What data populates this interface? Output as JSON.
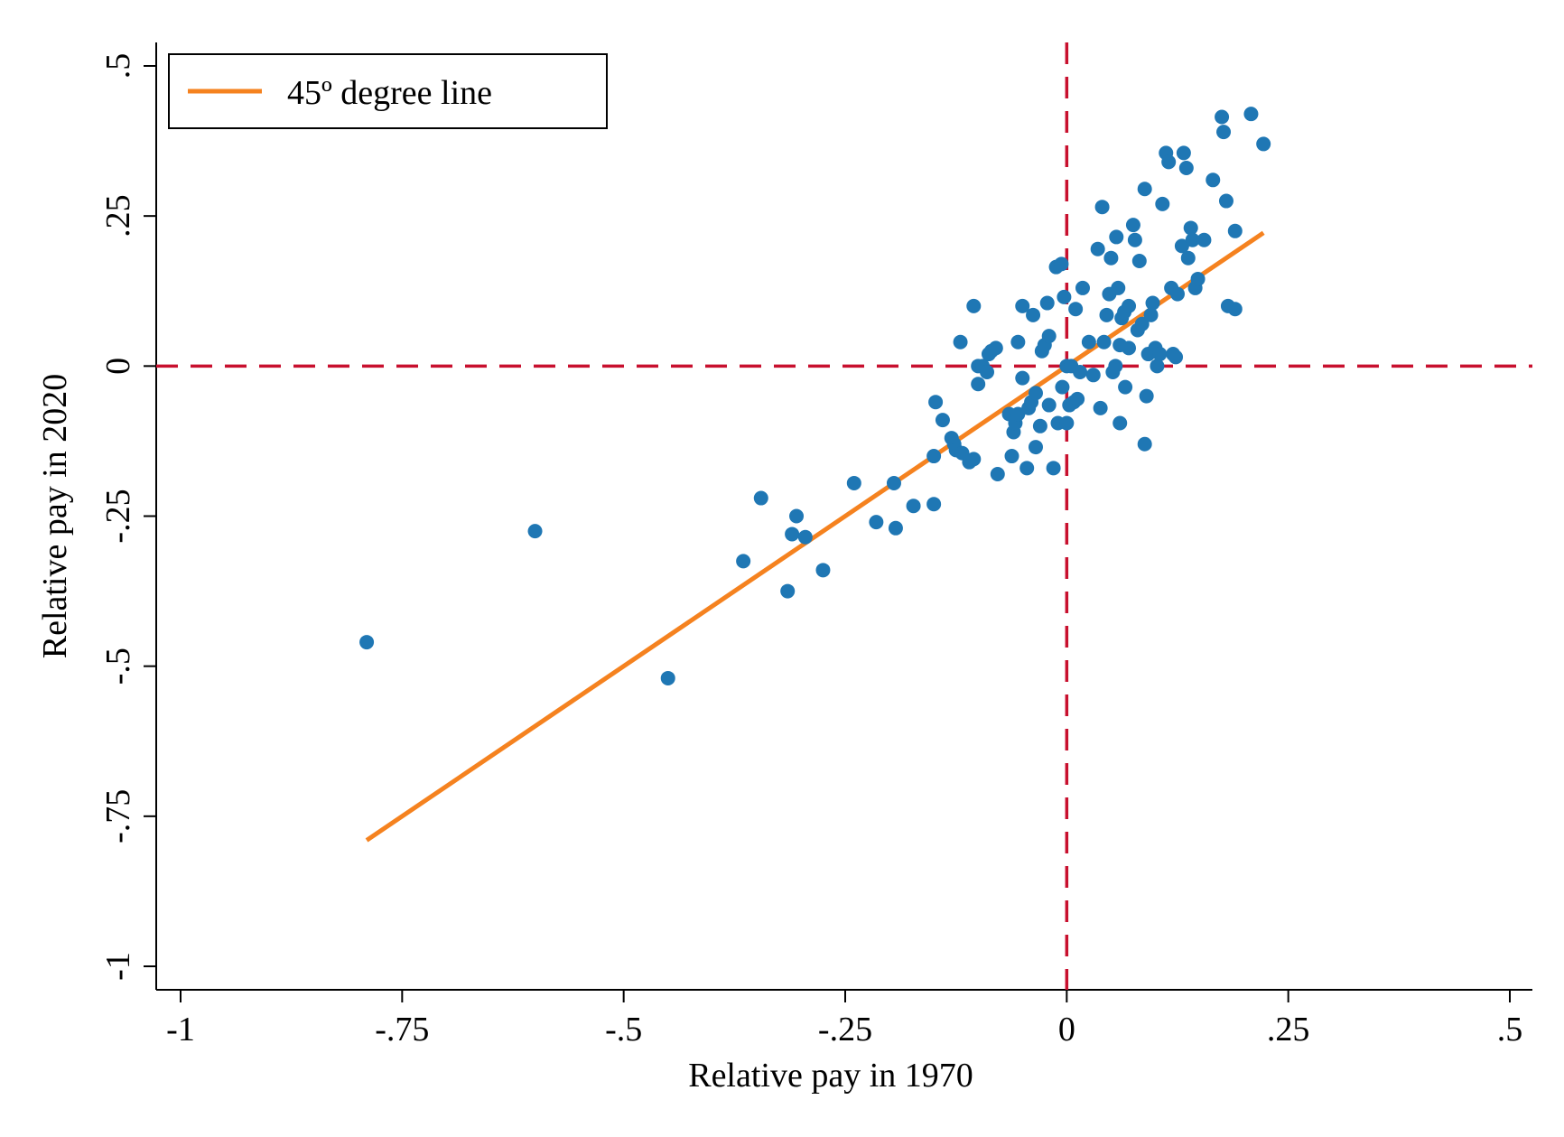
{
  "chart_data": {
    "type": "scatter",
    "xlabel": "Relative pay in 1970",
    "ylabel": "Relative pay in 2020",
    "xlim": [
      -1,
      0.5
    ],
    "ylim": [
      -1,
      0.5
    ],
    "x_ticks": [
      {
        "value": -1,
        "label": "-1"
      },
      {
        "value": -0.75,
        "label": "-.75"
      },
      {
        "value": -0.5,
        "label": "-.5"
      },
      {
        "value": -0.25,
        "label": "-.25"
      },
      {
        "value": 0,
        "label": "0"
      },
      {
        "value": 0.25,
        "label": ".25"
      },
      {
        "value": 0.5,
        "label": ".5"
      }
    ],
    "y_ticks": [
      {
        "value": -1,
        "label": "-1"
      },
      {
        "value": -0.75,
        "label": "-.75"
      },
      {
        "value": -0.5,
        "label": "-.5"
      },
      {
        "value": -0.25,
        "label": "-.25"
      },
      {
        "value": 0,
        "label": "0"
      },
      {
        "value": 0.25,
        "label": ".25"
      },
      {
        "value": 0.5,
        "label": ".5"
      }
    ],
    "grid": false,
    "legend": {
      "placement": "top-left",
      "entries": [
        "45º degree line"
      ]
    },
    "reference_lines": [
      {
        "orientation": "vertical",
        "value": 0,
        "style": "dashed",
        "color": "#c8102e"
      },
      {
        "orientation": "horizontal",
        "value": 0,
        "style": "dashed",
        "color": "#c8102e"
      }
    ],
    "series": [
      {
        "type": "scatter",
        "color": "#1f77b4",
        "points": [
          [
            -0.79,
            -0.46
          ],
          [
            -0.6,
            -0.275
          ],
          [
            -0.45,
            -0.52
          ],
          [
            -0.365,
            -0.325
          ],
          [
            -0.345,
            -0.22
          ],
          [
            -0.315,
            -0.375
          ],
          [
            -0.31,
            -0.28
          ],
          [
            -0.305,
            -0.25
          ],
          [
            -0.295,
            -0.285
          ],
          [
            -0.275,
            -0.34
          ],
          [
            -0.24,
            -0.195
          ],
          [
            -0.215,
            -0.26
          ],
          [
            -0.195,
            -0.195
          ],
          [
            -0.193,
            -0.27
          ],
          [
            -0.173,
            -0.233
          ],
          [
            -0.15,
            -0.23
          ],
          [
            -0.15,
            -0.15
          ],
          [
            -0.148,
            -0.06
          ],
          [
            -0.14,
            -0.09
          ],
          [
            -0.13,
            -0.12
          ],
          [
            -0.127,
            -0.13
          ],
          [
            -0.125,
            -0.14
          ],
          [
            -0.12,
            0.04
          ],
          [
            -0.118,
            -0.145
          ],
          [
            -0.11,
            -0.16
          ],
          [
            -0.105,
            -0.155
          ],
          [
            -0.105,
            0.1
          ],
          [
            -0.1,
            0.0
          ],
          [
            -0.1,
            -0.03
          ],
          [
            -0.095,
            0.0
          ],
          [
            -0.09,
            -0.01
          ],
          [
            -0.088,
            0.02
          ],
          [
            -0.085,
            0.025
          ],
          [
            -0.08,
            0.03
          ],
          [
            -0.078,
            -0.18
          ],
          [
            -0.065,
            -0.08
          ],
          [
            -0.062,
            -0.15
          ],
          [
            -0.06,
            -0.11
          ],
          [
            -0.058,
            -0.095
          ],
          [
            -0.055,
            -0.08
          ],
          [
            -0.055,
            0.04
          ],
          [
            -0.05,
            0.1
          ],
          [
            -0.05,
            -0.02
          ],
          [
            -0.045,
            -0.17
          ],
          [
            -0.043,
            -0.07
          ],
          [
            -0.04,
            -0.06
          ],
          [
            -0.038,
            0.085
          ],
          [
            -0.035,
            -0.135
          ],
          [
            -0.035,
            -0.045
          ],
          [
            -0.03,
            -0.1
          ],
          [
            -0.028,
            0.025
          ],
          [
            -0.025,
            0.035
          ],
          [
            -0.022,
            0.105
          ],
          [
            -0.02,
            -0.065
          ],
          [
            -0.02,
            0.05
          ],
          [
            -0.015,
            -0.17
          ],
          [
            -0.012,
            0.165
          ],
          [
            -0.01,
            -0.095
          ],
          [
            -0.006,
            0.17
          ],
          [
            -0.005,
            -0.035
          ],
          [
            -0.003,
            0.115
          ],
          [
            0.0,
            -0.095
          ],
          [
            0.0,
            0.0
          ],
          [
            0.003,
            -0.065
          ],
          [
            0.005,
            0.0
          ],
          [
            0.008,
            -0.06
          ],
          [
            0.01,
            0.095
          ],
          [
            0.012,
            -0.055
          ],
          [
            0.015,
            -0.01
          ],
          [
            0.018,
            0.13
          ],
          [
            0.025,
            0.04
          ],
          [
            0.03,
            -0.015
          ],
          [
            0.035,
            0.195
          ],
          [
            0.038,
            -0.07
          ],
          [
            0.04,
            0.265
          ],
          [
            0.042,
            0.04
          ],
          [
            0.045,
            0.085
          ],
          [
            0.048,
            0.12
          ],
          [
            0.05,
            0.18
          ],
          [
            0.052,
            -0.01
          ],
          [
            0.055,
            0.0
          ],
          [
            0.056,
            0.215
          ],
          [
            0.058,
            0.13
          ],
          [
            0.06,
            0.035
          ],
          [
            0.06,
            -0.095
          ],
          [
            0.062,
            0.08
          ],
          [
            0.065,
            0.09
          ],
          [
            0.066,
            -0.035
          ],
          [
            0.07,
            0.1
          ],
          [
            0.07,
            0.03
          ],
          [
            0.075,
            0.235
          ],
          [
            0.077,
            0.21
          ],
          [
            0.08,
            0.06
          ],
          [
            0.082,
            0.175
          ],
          [
            0.085,
            0.07
          ],
          [
            0.088,
            0.295
          ],
          [
            0.088,
            -0.13
          ],
          [
            0.09,
            -0.05
          ],
          [
            0.092,
            0.02
          ],
          [
            0.095,
            0.085
          ],
          [
            0.097,
            0.105
          ],
          [
            0.1,
            0.03
          ],
          [
            0.102,
            0.0
          ],
          [
            0.105,
            0.02
          ],
          [
            0.108,
            0.27
          ],
          [
            0.112,
            0.355
          ],
          [
            0.115,
            0.34
          ],
          [
            0.118,
            0.13
          ],
          [
            0.12,
            0.02
          ],
          [
            0.123,
            0.015
          ],
          [
            0.125,
            0.12
          ],
          [
            0.13,
            0.2
          ],
          [
            0.132,
            0.355
          ],
          [
            0.135,
            0.33
          ],
          [
            0.137,
            0.18
          ],
          [
            0.14,
            0.23
          ],
          [
            0.142,
            0.21
          ],
          [
            0.145,
            0.13
          ],
          [
            0.148,
            0.145
          ],
          [
            0.155,
            0.21
          ],
          [
            0.165,
            0.31
          ],
          [
            0.175,
            0.415
          ],
          [
            0.177,
            0.39
          ],
          [
            0.18,
            0.275
          ],
          [
            0.182,
            0.1
          ],
          [
            0.19,
            0.095
          ],
          [
            0.19,
            0.225
          ],
          [
            0.208,
            0.42
          ],
          [
            0.222,
            0.37
          ]
        ]
      },
      {
        "type": "line",
        "name": "45º degree line",
        "color": "#f5821f",
        "x": [
          -0.79,
          0.222
        ],
        "y": [
          -0.79,
          0.222
        ]
      }
    ]
  }
}
